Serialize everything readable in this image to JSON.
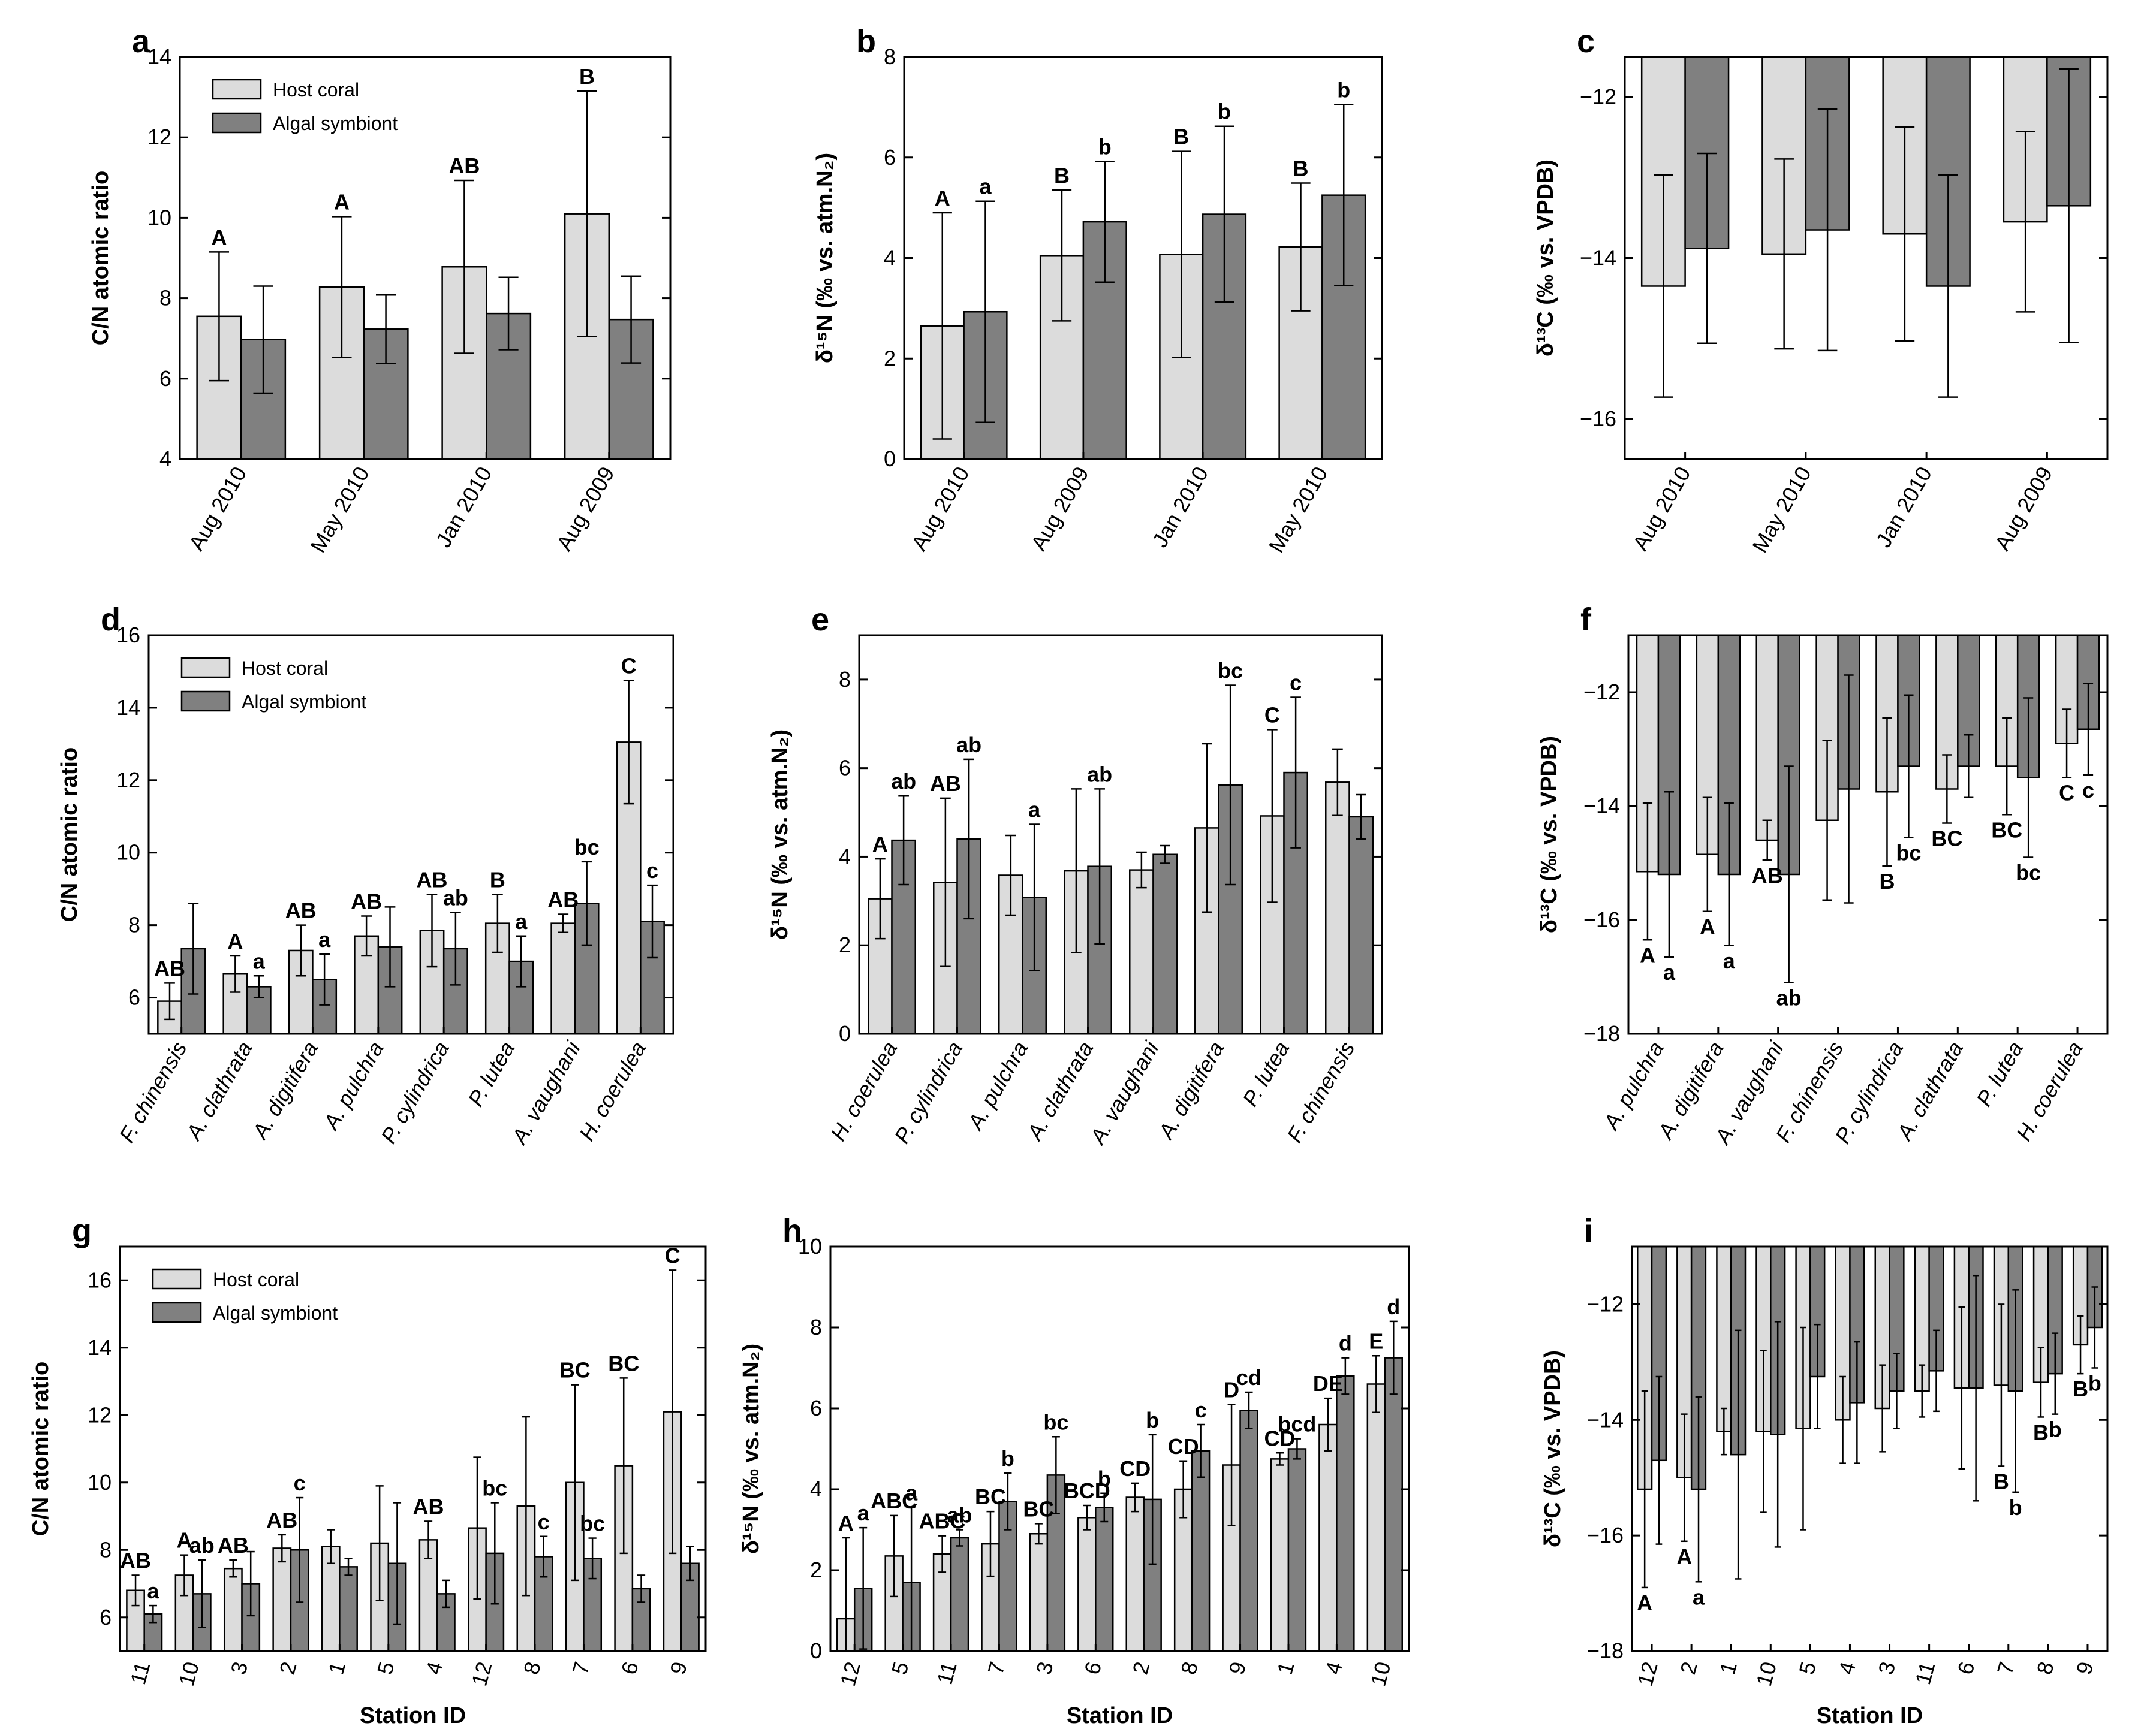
{
  "legend": {
    "host_label": "Host coral",
    "symbiont_label": "Algal symbiont"
  },
  "colors": {
    "host": "#dcdcdc",
    "symbiont": "#808080",
    "stroke": "#000000"
  },
  "chart_data": [
    {
      "id": "a",
      "letter": "a",
      "type": "bar",
      "legend": true,
      "ylabel": "C/N atomic ratio",
      "xlabel": "",
      "ylim": [
        4,
        14
      ],
      "yticks": [
        4,
        6,
        8,
        10,
        12,
        14
      ],
      "categories": [
        "Aug 2010",
        "May 2010",
        "Jan 2010",
        "Aug 2009"
      ],
      "rotate": -60,
      "host": {
        "values": [
          7.55,
          8.28,
          8.78,
          10.1
        ],
        "errors": [
          1.6,
          1.75,
          2.15,
          3.05
        ],
        "labels": [
          "A",
          "A",
          "AB",
          "B"
        ]
      },
      "symbiont": {
        "values": [
          6.97,
          7.23,
          7.62,
          7.47
        ],
        "errors": [
          1.33,
          0.85,
          0.9,
          1.08
        ],
        "labels": [
          "",
          "",
          "",
          ""
        ]
      }
    },
    {
      "id": "b",
      "letter": "b",
      "type": "bar",
      "legend": false,
      "ylabel": "δ¹⁵N (‰ vs. atm.N₂)",
      "xlabel": "",
      "ylim": [
        0,
        8
      ],
      "yticks": [
        0,
        2,
        4,
        6,
        8
      ],
      "categories": [
        "Aug 2010",
        "Aug 2009",
        "Jan 2010",
        "May 2010"
      ],
      "rotate": -60,
      "host": {
        "values": [
          2.65,
          4.05,
          4.07,
          4.22
        ],
        "errors": [
          2.25,
          1.3,
          2.05,
          1.27
        ],
        "labels": [
          "A",
          "B",
          "B",
          "B"
        ]
      },
      "symbiont": {
        "values": [
          2.93,
          4.72,
          4.87,
          5.25
        ],
        "errors": [
          2.2,
          1.2,
          1.75,
          1.8
        ],
        "labels": [
          "a",
          "b",
          "b",
          "b"
        ]
      }
    },
    {
      "id": "c",
      "letter": "c",
      "type": "bar",
      "legend": false,
      "ylabel": "δ¹³C (‰ vs. VPDB)",
      "xlabel": "",
      "ylim": [
        -16.5,
        -11.5
      ],
      "yticks": [
        -16,
        -14,
        -12
      ],
      "categories": [
        "Aug 2010",
        "May 2010",
        "Jan 2010",
        "Aug 2009"
      ],
      "rotate": -60,
      "host": {
        "values": [
          -14.35,
          -13.95,
          -13.7,
          -13.55
        ],
        "errors": [
          1.38,
          1.18,
          1.33,
          1.12
        ],
        "labels": [
          "",
          "",
          "",
          ""
        ]
      },
      "symbiont": {
        "values": [
          -13.88,
          -13.65,
          -14.35,
          -13.35
        ],
        "errors": [
          1.18,
          1.5,
          1.38,
          1.7
        ],
        "labels": [
          "",
          "",
          "",
          ""
        ]
      }
    },
    {
      "id": "d",
      "letter": "d",
      "type": "bar",
      "legend": true,
      "ylabel": "C/N atomic ratio",
      "xlabel": "",
      "ylim": [
        5,
        16
      ],
      "yticks": [
        6,
        8,
        10,
        12,
        14,
        16
      ],
      "categories": [
        "F. chinensis",
        "A. clathrata",
        "A. digitifera",
        "A. pulchra",
        "P. cylindrica",
        "P. lutea",
        "A. vaughani",
        "H. coerulea"
      ],
      "rotate": -60,
      "italic": true,
      "host": {
        "values": [
          5.9,
          6.65,
          7.3,
          7.7,
          7.85,
          8.05,
          8.05,
          13.05
        ],
        "errors": [
          0.5,
          0.5,
          0.7,
          0.55,
          1.0,
          0.8,
          0.25,
          1.7
        ],
        "labels": [
          "AB",
          "A",
          "AB",
          "AB",
          "AB",
          "B",
          "AB",
          "C"
        ]
      },
      "symbiont": {
        "values": [
          7.35,
          6.3,
          6.5,
          7.4,
          7.35,
          7.0,
          8.6,
          8.1
        ],
        "errors": [
          1.25,
          0.3,
          0.7,
          1.1,
          1.0,
          0.7,
          1.15,
          1.0
        ],
        "labels": [
          "",
          "a",
          "a",
          "",
          "ab",
          "a",
          "bc",
          "c"
        ]
      }
    },
    {
      "id": "e",
      "letter": "e",
      "type": "bar",
      "legend": false,
      "ylabel": "δ¹⁵N (‰ vs. atm.N₂)",
      "xlabel": "",
      "ylim": [
        0,
        9
      ],
      "yticks": [
        0,
        2,
        4,
        6,
        8
      ],
      "categories": [
        "H. coerulea",
        "P. cylindrica",
        "A. pulchra",
        "A. clathrata",
        "A. vaughani",
        "A. digitifera",
        "P. lutea",
        "F. chinensis"
      ],
      "rotate": -60,
      "italic": true,
      "host": {
        "values": [
          3.05,
          3.42,
          3.58,
          3.68,
          3.7,
          4.65,
          4.92,
          5.68
        ],
        "errors": [
          0.9,
          1.9,
          0.9,
          1.85,
          0.4,
          1.9,
          1.95,
          0.75
        ],
        "labels": [
          "A",
          "AB",
          "",
          "",
          "",
          "",
          "C",
          ""
        ]
      },
      "symbiont": {
        "values": [
          4.37,
          4.4,
          3.08,
          3.78,
          4.05,
          5.62,
          5.9,
          4.9
        ],
        "errors": [
          1.0,
          1.8,
          1.65,
          1.75,
          0.2,
          2.25,
          1.7,
          0.5
        ],
        "labels": [
          "ab",
          "ab",
          "a",
          "ab",
          "",
          "bc",
          "c",
          ""
        ]
      }
    },
    {
      "id": "f",
      "letter": "f",
      "type": "bar",
      "legend": false,
      "ylabel": "δ¹³C (‰ vs. VPDB)",
      "xlabel": "",
      "ylim": [
        -18,
        -11
      ],
      "yticks": [
        -18,
        -16,
        -14,
        -12
      ],
      "categories": [
        "A. pulchra",
        "A. digitifera",
        "A. vaughani",
        "F. chinensis",
        "P. cylindrica",
        "A. clathrata",
        "P. lutea",
        "H. coerulea"
      ],
      "rotate": -60,
      "italic": true,
      "host": {
        "values": [
          -15.15,
          -14.85,
          -14.6,
          -14.25,
          -13.75,
          -13.7,
          -13.3,
          -12.9
        ],
        "errors": [
          1.2,
          1.0,
          0.35,
          1.4,
          1.3,
          0.6,
          0.85,
          0.6
        ],
        "labels": [
          "A",
          "A",
          "AB",
          "",
          "B",
          "BC",
          "BC",
          "C"
        ]
      },
      "symbiont": {
        "values": [
          -15.2,
          -15.2,
          -15.2,
          -13.7,
          -13.3,
          -13.3,
          -13.5,
          -12.65
        ],
        "errors": [
          1.45,
          1.25,
          1.9,
          2.0,
          1.25,
          0.55,
          1.4,
          0.8
        ],
        "labels": [
          "a",
          "a",
          "ab",
          "",
          "bc",
          "",
          "bc",
          "c"
        ]
      }
    },
    {
      "id": "g",
      "letter": "g",
      "type": "bar",
      "legend": true,
      "ylabel": "C/N atomic ratio",
      "xlabel": "Station ID",
      "ylim": [
        5,
        17
      ],
      "yticks": [
        6,
        8,
        10,
        12,
        14,
        16
      ],
      "categories": [
        "11",
        "10",
        "3",
        "2",
        "1",
        "5",
        "4",
        "12",
        "8",
        "7",
        "6",
        "9"
      ],
      "rotate": -75,
      "host": {
        "values": [
          6.8,
          7.25,
          7.45,
          8.05,
          8.1,
          8.2,
          8.3,
          8.65,
          9.3,
          10.0,
          10.5,
          12.1
        ],
        "errors": [
          0.45,
          0.6,
          0.25,
          0.4,
          0.5,
          1.7,
          0.55,
          2.1,
          2.65,
          2.9,
          2.6,
          4.2
        ],
        "labels": [
          "AB",
          "A",
          "AB",
          "AB",
          "",
          "",
          "AB",
          "",
          "",
          "BC",
          "BC",
          "C"
        ]
      },
      "symbiont": {
        "values": [
          6.1,
          6.7,
          7.0,
          8.0,
          7.5,
          7.6,
          6.7,
          7.9,
          7.8,
          7.75,
          6.85,
          7.6
        ],
        "errors": [
          0.25,
          1.0,
          0.95,
          1.55,
          0.25,
          1.8,
          0.4,
          1.5,
          0.6,
          0.6,
          0.4,
          0.5
        ],
        "labels": [
          "a",
          "ab",
          "",
          "c",
          "",
          "",
          "",
          "bc",
          "c",
          "bc",
          "",
          ""
        ]
      }
    },
    {
      "id": "h",
      "letter": "h",
      "type": "bar",
      "legend": false,
      "ylabel": "δ¹⁵N (‰ vs. atm.N₂)",
      "xlabel": "Station ID",
      "ylim": [
        0,
        10
      ],
      "yticks": [
        0,
        2,
        4,
        6,
        8,
        10
      ],
      "categories": [
        "12",
        "5",
        "11",
        "7",
        "3",
        "6",
        "2",
        "8",
        "9",
        "1",
        "4",
        "10"
      ],
      "rotate": -75,
      "host": {
        "values": [
          0.8,
          2.35,
          2.4,
          2.65,
          2.9,
          3.3,
          3.8,
          4.0,
          4.6,
          4.75,
          5.6,
          6.6
        ],
        "errors": [
          2.0,
          1.0,
          0.45,
          0.8,
          0.25,
          0.3,
          0.35,
          0.7,
          1.5,
          0.15,
          0.65,
          0.7
        ],
        "labels": [
          "A",
          "ABC",
          "ABC",
          "BC",
          "BC",
          "BCD",
          "CD",
          "CD",
          "D",
          "CD",
          "DE",
          "E"
        ]
      },
      "symbiont": {
        "values": [
          1.55,
          1.7,
          2.8,
          3.7,
          4.35,
          3.55,
          3.75,
          4.95,
          5.95,
          5.0,
          6.8,
          7.25
        ],
        "errors": [
          1.5,
          1.85,
          0.2,
          0.7,
          0.95,
          0.35,
          1.6,
          0.65,
          0.45,
          0.25,
          0.45,
          0.9
        ],
        "labels": [
          "a",
          "a",
          "ab",
          "b",
          "bc",
          "b",
          "b",
          "c",
          "cd",
          "bcd",
          "d",
          "d"
        ]
      }
    },
    {
      "id": "i",
      "letter": "i",
      "type": "bar",
      "legend": false,
      "ylabel": "δ¹³C (‰ vs. VPDB)",
      "xlabel": "Station ID",
      "ylim": [
        -18,
        -11
      ],
      "yticks": [
        -18,
        -16,
        -14,
        -12
      ],
      "categories": [
        "12",
        "2",
        "1",
        "10",
        "5",
        "4",
        "3",
        "11",
        "6",
        "7",
        "8",
        "9"
      ],
      "rotate": -75,
      "host": {
        "values": [
          -15.2,
          -15.0,
          -14.2,
          -14.2,
          -14.15,
          -14.0,
          -13.8,
          -13.5,
          -13.45,
          -13.4,
          -13.35,
          -12.7
        ],
        "errors": [
          1.7,
          1.1,
          0.4,
          1.4,
          1.75,
          0.75,
          0.75,
          0.45,
          1.4,
          1.4,
          0.6,
          0.5
        ],
        "labels": [
          "A",
          "A",
          "",
          "",
          "",
          "",
          "",
          "",
          "",
          "B",
          "B",
          "B"
        ]
      },
      "symbiont": {
        "values": [
          -14.7,
          -15.2,
          -14.6,
          -14.25,
          -13.25,
          -13.7,
          -13.5,
          -13.15,
          -13.45,
          -13.5,
          -13.2,
          -12.4
        ],
        "errors": [
          1.45,
          1.6,
          2.15,
          1.95,
          0.9,
          1.05,
          0.65,
          0.7,
          1.95,
          1.75,
          0.7,
          0.7
        ],
        "labels": [
          "",
          "a",
          "",
          "",
          "",
          "",
          "",
          "",
          "",
          "b",
          "b",
          "b"
        ]
      }
    }
  ]
}
